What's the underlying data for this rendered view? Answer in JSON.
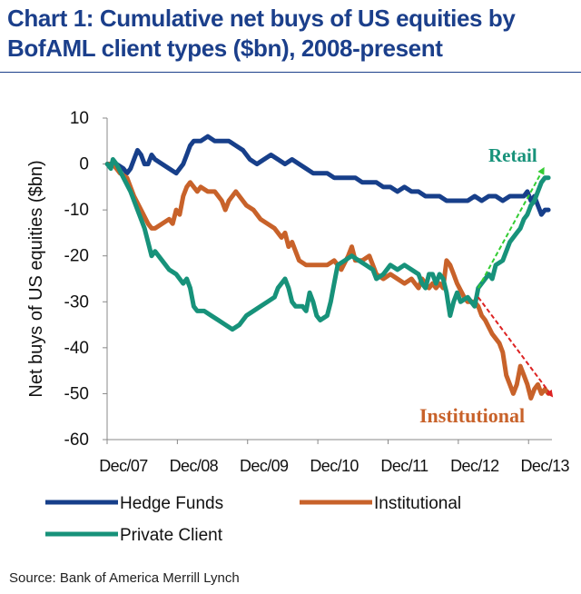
{
  "title_line1": "Chart 1: Cumulative net buys of US equities by",
  "title_line2": "BofAML client types ($bn), 2008-present",
  "source": "Source: Bank of America Merrill Lynch",
  "colors": {
    "title": "#1b3f8b",
    "hedge_funds": "#173f8a",
    "institutional": "#c8622a",
    "private_client": "#17927a",
    "retail_arrow": "#33cc33",
    "institutional_arrow": "#dd2222"
  },
  "chart_data": {
    "type": "line",
    "title": "Chart 1: Cumulative net buys of US equities by BofAML client types ($bn), 2008-present",
    "xlabel": "",
    "ylabel": "Net buys of US equities ($bn)",
    "xlim": [
      2007.917,
      2014.25
    ],
    "ylim": [
      -60,
      10
    ],
    "yticks": [
      10,
      0,
      -10,
      -20,
      -30,
      -40,
      -50,
      -60
    ],
    "xticks": [
      {
        "x": 2007.917,
        "label": "Dec/07"
      },
      {
        "x": 2008.917,
        "label": "Dec/08"
      },
      {
        "x": 2009.917,
        "label": "Dec/09"
      },
      {
        "x": 2010.917,
        "label": "Dec/10"
      },
      {
        "x": 2011.917,
        "label": "Dec/11"
      },
      {
        "x": 2012.917,
        "label": "Dec/12"
      },
      {
        "x": 2013.917,
        "label": "Dec/13"
      }
    ],
    "grid": false,
    "legend_position": "bottom",
    "series": [
      {
        "name": "Hedge Funds",
        "color_key": "hedge_funds",
        "points": [
          [
            2007.92,
            0
          ],
          [
            2008.05,
            0
          ],
          [
            2008.15,
            -1
          ],
          [
            2008.2,
            -2
          ],
          [
            2008.25,
            -1
          ],
          [
            2008.3,
            1
          ],
          [
            2008.35,
            3
          ],
          [
            2008.4,
            2
          ],
          [
            2008.45,
            0
          ],
          [
            2008.5,
            0
          ],
          [
            2008.55,
            2
          ],
          [
            2008.6,
            1
          ],
          [
            2008.7,
            0
          ],
          [
            2008.8,
            -1
          ],
          [
            2008.9,
            -2
          ],
          [
            2009.0,
            0
          ],
          [
            2009.05,
            2
          ],
          [
            2009.1,
            4
          ],
          [
            2009.15,
            5
          ],
          [
            2009.25,
            5
          ],
          [
            2009.35,
            6
          ],
          [
            2009.45,
            5
          ],
          [
            2009.55,
            5
          ],
          [
            2009.65,
            5
          ],
          [
            2009.75,
            4
          ],
          [
            2009.85,
            3
          ],
          [
            2009.95,
            1
          ],
          [
            2010.05,
            0
          ],
          [
            2010.15,
            1
          ],
          [
            2010.25,
            2
          ],
          [
            2010.35,
            1
          ],
          [
            2010.45,
            0
          ],
          [
            2010.55,
            1
          ],
          [
            2010.65,
            0
          ],
          [
            2010.75,
            -1
          ],
          [
            2010.85,
            -2
          ],
          [
            2010.95,
            -2
          ],
          [
            2011.05,
            -2
          ],
          [
            2011.15,
            -3
          ],
          [
            2011.25,
            -3
          ],
          [
            2011.35,
            -3
          ],
          [
            2011.45,
            -3
          ],
          [
            2011.55,
            -4
          ],
          [
            2011.65,
            -4
          ],
          [
            2011.75,
            -4
          ],
          [
            2011.85,
            -5
          ],
          [
            2011.95,
            -5
          ],
          [
            2012.05,
            -6
          ],
          [
            2012.15,
            -5
          ],
          [
            2012.25,
            -6
          ],
          [
            2012.35,
            -6
          ],
          [
            2012.45,
            -7
          ],
          [
            2012.55,
            -7
          ],
          [
            2012.65,
            -7
          ],
          [
            2012.75,
            -8
          ],
          [
            2012.85,
            -8
          ],
          [
            2012.95,
            -8
          ],
          [
            2013.05,
            -8
          ],
          [
            2013.15,
            -7
          ],
          [
            2013.25,
            -8
          ],
          [
            2013.35,
            -7
          ],
          [
            2013.45,
            -7
          ],
          [
            2013.55,
            -8
          ],
          [
            2013.65,
            -7
          ],
          [
            2013.75,
            -7
          ],
          [
            2013.85,
            -7
          ],
          [
            2013.9,
            -6
          ],
          [
            2013.95,
            -8
          ],
          [
            2014.0,
            -7
          ],
          [
            2014.05,
            -9
          ],
          [
            2014.1,
            -11
          ],
          [
            2014.15,
            -10
          ],
          [
            2014.2,
            -10
          ]
        ]
      },
      {
        "name": "Institutional",
        "color_key": "institutional",
        "points": [
          [
            2007.92,
            0
          ],
          [
            2008.0,
            0
          ],
          [
            2008.1,
            -2
          ],
          [
            2008.2,
            -3
          ],
          [
            2008.3,
            -7
          ],
          [
            2008.4,
            -10
          ],
          [
            2008.5,
            -13
          ],
          [
            2008.55,
            -14
          ],
          [
            2008.6,
            -14
          ],
          [
            2008.7,
            -13
          ],
          [
            2008.8,
            -12
          ],
          [
            2008.85,
            -13
          ],
          [
            2008.9,
            -10
          ],
          [
            2008.95,
            -11
          ],
          [
            2009.0,
            -7
          ],
          [
            2009.05,
            -5
          ],
          [
            2009.1,
            -4
          ],
          [
            2009.2,
            -6
          ],
          [
            2009.25,
            -5
          ],
          [
            2009.35,
            -6
          ],
          [
            2009.45,
            -6
          ],
          [
            2009.55,
            -8
          ],
          [
            2009.6,
            -10
          ],
          [
            2009.65,
            -8
          ],
          [
            2009.75,
            -6
          ],
          [
            2009.8,
            -7
          ],
          [
            2009.9,
            -9
          ],
          [
            2010.0,
            -10
          ],
          [
            2010.1,
            -12
          ],
          [
            2010.2,
            -13
          ],
          [
            2010.3,
            -14
          ],
          [
            2010.4,
            -16
          ],
          [
            2010.45,
            -15
          ],
          [
            2010.5,
            -18
          ],
          [
            2010.55,
            -17
          ],
          [
            2010.6,
            -19
          ],
          [
            2010.65,
            -21
          ],
          [
            2010.75,
            -22
          ],
          [
            2010.85,
            -22
          ],
          [
            2010.95,
            -22
          ],
          [
            2011.05,
            -22
          ],
          [
            2011.15,
            -21
          ],
          [
            2011.25,
            -23
          ],
          [
            2011.35,
            -20
          ],
          [
            2011.4,
            -18
          ],
          [
            2011.45,
            -21
          ],
          [
            2011.55,
            -21
          ],
          [
            2011.65,
            -20
          ],
          [
            2011.7,
            -22
          ],
          [
            2011.75,
            -24
          ],
          [
            2011.85,
            -25
          ],
          [
            2011.95,
            -24
          ],
          [
            2012.05,
            -25
          ],
          [
            2012.15,
            -26
          ],
          [
            2012.25,
            -25
          ],
          [
            2012.3,
            -26
          ],
          [
            2012.35,
            -27
          ],
          [
            2012.4,
            -25
          ],
          [
            2012.45,
            -26
          ],
          [
            2012.5,
            -27
          ],
          [
            2012.55,
            -26
          ],
          [
            2012.6,
            -27
          ],
          [
            2012.65,
            -26
          ],
          [
            2012.7,
            -27
          ],
          [
            2012.75,
            -21
          ],
          [
            2012.8,
            -22
          ],
          [
            2012.85,
            -24
          ],
          [
            2012.9,
            -26
          ],
          [
            2013.0,
            -29
          ],
          [
            2013.05,
            -30
          ],
          [
            2013.15,
            -30
          ],
          [
            2013.2,
            -31
          ],
          [
            2013.25,
            -33
          ],
          [
            2013.3,
            -34
          ],
          [
            2013.4,
            -37
          ],
          [
            2013.5,
            -39
          ],
          [
            2013.55,
            -41
          ],
          [
            2013.6,
            -46
          ],
          [
            2013.65,
            -48
          ],
          [
            2013.7,
            -50
          ],
          [
            2013.75,
            -48
          ],
          [
            2013.8,
            -44
          ],
          [
            2013.85,
            -46
          ],
          [
            2013.9,
            -48
          ],
          [
            2013.95,
            -51
          ],
          [
            2014.0,
            -49
          ],
          [
            2014.05,
            -48
          ],
          [
            2014.1,
            -50
          ],
          [
            2014.15,
            -49
          ],
          [
            2014.2,
            -50
          ]
        ]
      },
      {
        "name": "Private Client",
        "color_key": "private_client",
        "points": [
          [
            2007.92,
            0
          ],
          [
            2007.97,
            -1
          ],
          [
            2008.0,
            1
          ],
          [
            2008.05,
            0
          ],
          [
            2008.15,
            -3
          ],
          [
            2008.25,
            -6
          ],
          [
            2008.35,
            -10
          ],
          [
            2008.45,
            -14
          ],
          [
            2008.5,
            -17
          ],
          [
            2008.55,
            -20
          ],
          [
            2008.6,
            -19
          ],
          [
            2008.7,
            -21
          ],
          [
            2008.8,
            -23
          ],
          [
            2008.9,
            -24
          ],
          [
            2009.0,
            -26
          ],
          [
            2009.05,
            -25
          ],
          [
            2009.1,
            -27
          ],
          [
            2009.15,
            -31
          ],
          [
            2009.2,
            -32
          ],
          [
            2009.3,
            -32
          ],
          [
            2009.4,
            -33
          ],
          [
            2009.5,
            -34
          ],
          [
            2009.6,
            -35
          ],
          [
            2009.7,
            -36
          ],
          [
            2009.8,
            -35
          ],
          [
            2009.9,
            -33
          ],
          [
            2010.0,
            -32
          ],
          [
            2010.1,
            -31
          ],
          [
            2010.2,
            -30
          ],
          [
            2010.3,
            -29
          ],
          [
            2010.35,
            -27
          ],
          [
            2010.4,
            -26
          ],
          [
            2010.45,
            -25
          ],
          [
            2010.5,
            -27
          ],
          [
            2010.55,
            -30
          ],
          [
            2010.6,
            -31
          ],
          [
            2010.7,
            -31
          ],
          [
            2010.75,
            -32
          ],
          [
            2010.8,
            -28
          ],
          [
            2010.85,
            -30
          ],
          [
            2010.9,
            -33
          ],
          [
            2010.95,
            -34
          ],
          [
            2011.05,
            -33
          ],
          [
            2011.1,
            -30
          ],
          [
            2011.15,
            -26
          ],
          [
            2011.2,
            -22
          ],
          [
            2011.3,
            -21
          ],
          [
            2011.4,
            -20
          ],
          [
            2011.5,
            -21
          ],
          [
            2011.6,
            -22
          ],
          [
            2011.7,
            -23
          ],
          [
            2011.75,
            -25
          ],
          [
            2011.85,
            -24
          ],
          [
            2011.95,
            -22
          ],
          [
            2012.05,
            -23
          ],
          [
            2012.15,
            -22
          ],
          [
            2012.25,
            -23
          ],
          [
            2012.35,
            -24
          ],
          [
            2012.4,
            -26
          ],
          [
            2012.45,
            -27
          ],
          [
            2012.5,
            -24
          ],
          [
            2012.55,
            -24
          ],
          [
            2012.6,
            -26
          ],
          [
            2012.65,
            -24
          ],
          [
            2012.7,
            -25
          ],
          [
            2012.75,
            -28
          ],
          [
            2012.8,
            -33
          ],
          [
            2012.85,
            -30
          ],
          [
            2012.9,
            -28
          ],
          [
            2012.95,
            -30
          ],
          [
            2013.05,
            -29
          ],
          [
            2013.1,
            -30
          ],
          [
            2013.15,
            -31
          ],
          [
            2013.2,
            -27
          ],
          [
            2013.3,
            -25
          ],
          [
            2013.35,
            -24
          ],
          [
            2013.4,
            -25
          ],
          [
            2013.45,
            -22
          ],
          [
            2013.55,
            -21
          ],
          [
            2013.65,
            -17
          ],
          [
            2013.75,
            -15
          ],
          [
            2013.8,
            -14
          ],
          [
            2013.85,
            -12
          ],
          [
            2013.9,
            -11
          ],
          [
            2013.95,
            -9
          ],
          [
            2014.0,
            -8
          ],
          [
            2014.05,
            -6
          ],
          [
            2014.1,
            -4
          ],
          [
            2014.15,
            -3
          ],
          [
            2014.2,
            -3
          ]
        ]
      }
    ],
    "annotations": [
      {
        "id": "retail",
        "text": "Retail",
        "color_key": "private_client",
        "arrow_from": [
          2013.2,
          -27
        ],
        "arrow_to": [
          2014.13,
          -1
        ],
        "arrow_color_key": "retail_arrow"
      },
      {
        "id": "institutional",
        "text": "Institutional",
        "color_key": "institutional",
        "arrow_from": [
          2013.2,
          -29
        ],
        "arrow_to": [
          2014.25,
          -50.5
        ],
        "arrow_color_key": "institutional_arrow"
      }
    ]
  }
}
